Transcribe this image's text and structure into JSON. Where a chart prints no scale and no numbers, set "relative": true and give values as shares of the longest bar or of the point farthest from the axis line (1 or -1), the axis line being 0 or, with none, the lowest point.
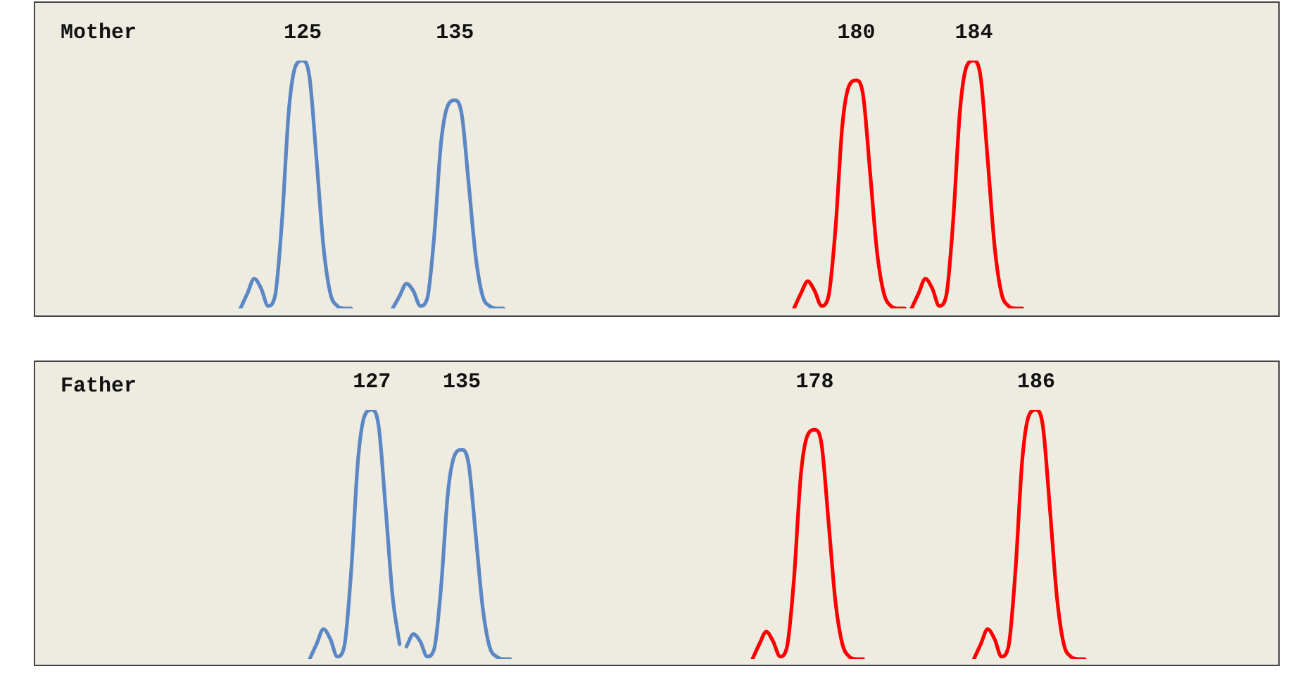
{
  "chart_data": [
    {
      "type": "line",
      "title": "Mother",
      "relative": true,
      "tick_labels": false,
      "legend": false,
      "grid": false,
      "marker": "none",
      "line_style": "solid",
      "categories": [
        null,
        null,
        null,
        null,
        null,
        null,
        null,
        null,
        null,
        null,
        null,
        null,
        null,
        null,
        null,
        null,
        null,
        null,
        null,
        null,
        null,
        null,
        null,
        null,
        null,
        null,
        null,
        null,
        null,
        null,
        null,
        null,
        null,
        null,
        null,
        null,
        null,
        null,
        null,
        null,
        null,
        null,
        null,
        null,
        null,
        null,
        null,
        null,
        null,
        null,
        null,
        null,
        null,
        null,
        null,
        null,
        null,
        null,
        null,
        null,
        null,
        null,
        null,
        null,
        null,
        null,
        null,
        null,
        null,
        null,
        null,
        null,
        null,
        null,
        null,
        null,
        null,
        null,
        null,
        null,
        null,
        null,
        null,
        null,
        null,
        null,
        null,
        null,
        null,
        null,
        null,
        null,
        null,
        null,
        null,
        null,
        null,
        null,
        null,
        null,
        null,
        null,
        null,
        null,
        null,
        null,
        null,
        null,
        null,
        null,
        null,
        null,
        null,
        null,
        null,
        null,
        null,
        null,
        null,
        null,
        null,
        null,
        null,
        null,
        null,
        null,
        null,
        null,
        null,
        null,
        null,
        null,
        null,
        null,
        null,
        null,
        null,
        null,
        null,
        null,
        null,
        null,
        null,
        null,
        null,
        null,
        null,
        null,
        null,
        null,
        null,
        null,
        null,
        null,
        null,
        null,
        null,
        null,
        null,
        null,
        null,
        null,
        null,
        null,
        null,
        null,
        null,
        null,
        null,
        null,
        null,
        null,
        null,
        null,
        null,
        null,
        null
      ],
      "series": [
        {
          "name": "125",
          "color": "#5b87c5",
          "values": [
            null,
            null,
            null,
            null,
            null,
            null,
            null,
            null,
            null,
            null,
            null,
            null,
            null,
            null,
            null,
            null,
            null,
            null,
            null,
            null,
            null,
            null,
            null,
            null,
            null,
            null,
            0,
            0.06,
            0.12,
            0.08,
            0.01,
            0.05,
            0.35,
            0.8,
            0.98,
            1,
            0.93,
            0.6,
            0.25,
            0.06,
            0.01,
            0,
            0,
            null,
            null,
            null,
            null,
            null,
            null,
            null,
            null,
            null,
            null,
            null,
            null,
            null,
            null,
            null,
            null,
            null,
            null,
            null,
            null,
            null,
            null,
            null,
            null,
            null,
            null,
            null,
            null,
            null,
            null,
            null,
            null,
            null,
            null,
            null,
            null,
            null,
            null,
            null,
            null,
            null,
            null,
            null,
            null,
            null,
            null,
            null,
            null,
            null,
            null,
            null,
            null,
            null,
            null,
            null,
            null,
            null,
            null,
            null,
            null,
            null,
            null,
            null,
            null,
            null,
            null,
            null,
            null,
            null,
            null,
            null,
            null,
            null,
            null,
            null,
            null,
            null,
            null,
            null,
            null,
            null,
            null,
            null,
            null,
            null,
            null,
            null,
            null,
            null,
            null,
            null,
            null,
            null,
            null,
            null,
            null,
            null,
            null,
            null,
            null,
            null,
            null,
            null,
            null,
            null,
            null,
            null,
            null,
            null,
            null,
            null,
            null,
            null,
            null,
            null,
            null,
            null,
            null,
            null,
            null,
            null,
            null,
            null,
            null,
            null,
            null,
            null,
            null,
            null,
            null,
            null,
            null,
            null,
            null
          ]
        },
        {
          "name": "135",
          "color": "#5b87c5",
          "values": [
            null,
            null,
            null,
            null,
            null,
            null,
            null,
            null,
            null,
            null,
            null,
            null,
            null,
            null,
            null,
            null,
            null,
            null,
            null,
            null,
            null,
            null,
            null,
            null,
            null,
            null,
            null,
            null,
            null,
            null,
            null,
            null,
            null,
            null,
            null,
            null,
            null,
            null,
            null,
            null,
            null,
            null,
            null,
            null,
            null,
            null,
            null,
            null,
            0,
            0.05,
            0.1,
            0.07,
            0.01,
            0.04,
            0.29,
            0.67,
            0.82,
            0.84,
            0.78,
            0.5,
            0.21,
            0.05,
            0.01,
            0,
            0,
            null,
            null,
            null,
            null,
            null,
            null,
            null,
            null,
            null,
            null,
            null,
            null,
            null,
            null,
            null,
            null,
            null,
            null,
            null,
            null,
            null,
            null,
            null,
            null,
            null,
            null,
            null,
            null,
            null,
            null,
            null,
            null,
            null,
            null,
            null,
            null,
            null,
            null,
            null,
            null,
            null,
            null,
            null,
            null,
            null,
            null,
            null,
            null,
            null,
            null,
            null,
            null,
            null,
            null,
            null,
            null,
            null,
            null,
            null,
            null,
            null,
            null,
            null,
            null,
            null,
            null,
            null,
            null,
            null,
            null,
            null,
            null,
            null,
            null,
            null,
            null,
            null,
            null,
            null,
            null,
            null,
            null,
            null,
            null,
            null,
            null,
            null,
            null,
            null,
            null,
            null,
            null,
            null,
            null,
            null,
            null,
            null,
            null,
            null,
            null,
            null,
            null,
            null,
            null,
            null,
            null,
            null,
            null,
            null,
            null,
            null,
            null
          ]
        },
        {
          "name": "180",
          "color": "#ff0000",
          "values": [
            null,
            null,
            null,
            null,
            null,
            null,
            null,
            null,
            null,
            null,
            null,
            null,
            null,
            null,
            null,
            null,
            null,
            null,
            null,
            null,
            null,
            null,
            null,
            null,
            null,
            null,
            null,
            null,
            null,
            null,
            null,
            null,
            null,
            null,
            null,
            null,
            null,
            null,
            null,
            null,
            null,
            null,
            null,
            null,
            null,
            null,
            null,
            null,
            null,
            null,
            null,
            null,
            null,
            null,
            null,
            null,
            null,
            null,
            null,
            null,
            null,
            null,
            null,
            null,
            null,
            null,
            null,
            null,
            null,
            null,
            null,
            null,
            null,
            null,
            null,
            null,
            null,
            null,
            null,
            null,
            null,
            null,
            null,
            null,
            null,
            null,
            null,
            null,
            null,
            null,
            null,
            null,
            null,
            null,
            null,
            null,
            null,
            null,
            null,
            null,
            null,
            null,
            null,
            null,
            null,
            null,
            0,
            0.06,
            0.11,
            0.07,
            0.01,
            0.05,
            0.32,
            0.74,
            0.9,
            0.92,
            0.86,
            0.55,
            0.23,
            0.06,
            0.01,
            0,
            0,
            null,
            null,
            null,
            null,
            null,
            null,
            null,
            null,
            null,
            null,
            null,
            null,
            null,
            null,
            null,
            null,
            null,
            null,
            null,
            null,
            null,
            null,
            null,
            null,
            null,
            null,
            null,
            null,
            null,
            null,
            null,
            null,
            null,
            null,
            null,
            null,
            null,
            null,
            null,
            null,
            null,
            null,
            null,
            null,
            null,
            null,
            null,
            null,
            null,
            null,
            null,
            null,
            null,
            null
          ]
        },
        {
          "name": "184",
          "color": "#ff0000",
          "values": [
            null,
            null,
            null,
            null,
            null,
            null,
            null,
            null,
            null,
            null,
            null,
            null,
            null,
            null,
            null,
            null,
            null,
            null,
            null,
            null,
            null,
            null,
            null,
            null,
            null,
            null,
            null,
            null,
            null,
            null,
            null,
            null,
            null,
            null,
            null,
            null,
            null,
            null,
            null,
            null,
            null,
            null,
            null,
            null,
            null,
            null,
            null,
            null,
            null,
            null,
            null,
            null,
            null,
            null,
            null,
            null,
            null,
            null,
            null,
            null,
            null,
            null,
            null,
            null,
            null,
            null,
            null,
            null,
            null,
            null,
            null,
            null,
            null,
            null,
            null,
            null,
            null,
            null,
            null,
            null,
            null,
            null,
            null,
            null,
            null,
            null,
            null,
            null,
            null,
            null,
            null,
            null,
            null,
            null,
            null,
            null,
            null,
            null,
            null,
            null,
            null,
            null,
            null,
            null,
            null,
            null,
            null,
            null,
            null,
            null,
            null,
            null,
            null,
            null,
            null,
            null,
            null,
            null,
            null,
            null,
            null,
            null,
            null,
            0,
            0.06,
            0.12,
            0.08,
            0.01,
            0.05,
            0.35,
            0.8,
            0.98,
            1,
            0.93,
            0.6,
            0.25,
            0.06,
            0.01,
            0,
            0,
            null,
            null,
            null,
            null,
            null,
            null,
            null,
            null,
            null,
            null,
            null,
            null,
            null,
            null,
            null,
            null,
            null,
            null,
            null,
            null,
            null,
            null,
            null,
            null,
            null,
            null,
            null,
            null,
            null,
            null,
            null,
            null,
            null,
            null,
            null,
            null,
            null
          ]
        }
      ]
    },
    {
      "type": "line",
      "title": "Father",
      "relative": true,
      "tick_labels": false,
      "legend": false,
      "grid": false,
      "marker": "none",
      "line_style": "solid",
      "categories": [
        null,
        null,
        null,
        null,
        null,
        null,
        null,
        null,
        null,
        null,
        null,
        null,
        null,
        null,
        null,
        null,
        null,
        null,
        null,
        null,
        null,
        null,
        null,
        null,
        null,
        null,
        null,
        null,
        null,
        null,
        null,
        null,
        null,
        null,
        null,
        null,
        null,
        null,
        null,
        null,
        null,
        null,
        null,
        null,
        null,
        null,
        null,
        null,
        null,
        null,
        null,
        null,
        null,
        null,
        null,
        null,
        null,
        null,
        null,
        null,
        null,
        null,
        null,
        null,
        null,
        null,
        null,
        null,
        null,
        null,
        null,
        null,
        null,
        null,
        null,
        null,
        null,
        null,
        null,
        null,
        null,
        null,
        null,
        null,
        null,
        null,
        null,
        null,
        null,
        null,
        null,
        null,
        null,
        null,
        null,
        null,
        null,
        null,
        null,
        null,
        null,
        null,
        null,
        null,
        null,
        null,
        null,
        null,
        null,
        null,
        null,
        null,
        null,
        null,
        null,
        null,
        null,
        null,
        null,
        null,
        null,
        null,
        null,
        null,
        null,
        null,
        null,
        null,
        null,
        null,
        null,
        null,
        null,
        null,
        null,
        null,
        null,
        null,
        null,
        null,
        null,
        null,
        null,
        null,
        null,
        null,
        null,
        null,
        null,
        null,
        null,
        null,
        null,
        null,
        null,
        null,
        null,
        null,
        null,
        null,
        null,
        null,
        null,
        null,
        null,
        null,
        null,
        null,
        null,
        null,
        null,
        null,
        null,
        null,
        null,
        null,
        null
      ],
      "series": [
        {
          "name": "127",
          "color": "#5b87c5",
          "values": [
            null,
            null,
            null,
            null,
            null,
            null,
            null,
            null,
            null,
            null,
            null,
            null,
            null,
            null,
            null,
            null,
            null,
            null,
            null,
            null,
            null,
            null,
            null,
            null,
            null,
            null,
            null,
            null,
            null,
            null,
            null,
            null,
            null,
            null,
            null,
            null,
            0,
            0.06,
            0.12,
            0.08,
            0.01,
            0.05,
            0.35,
            0.8,
            0.98,
            1,
            0.93,
            0.6,
            0.25,
            0.06,
            null,
            null,
            null,
            null,
            null,
            null,
            null,
            null,
            null,
            null,
            null,
            null,
            null,
            null,
            null,
            null,
            null,
            null,
            null,
            null,
            null,
            null,
            null,
            null,
            null,
            null,
            null,
            null,
            null,
            null,
            null,
            null,
            null,
            null,
            null,
            null,
            null,
            null,
            null,
            null,
            null,
            null,
            null,
            null,
            null,
            null,
            null,
            null,
            null,
            null,
            null,
            null,
            null,
            null,
            null,
            null,
            null,
            null,
            null,
            null,
            null,
            null,
            null,
            null,
            null,
            null,
            null,
            null,
            null,
            null,
            null,
            null,
            null,
            null,
            null,
            null,
            null,
            null,
            null,
            null,
            null,
            null,
            null,
            null,
            null,
            null,
            null,
            null,
            null,
            null,
            null,
            null,
            null,
            null,
            null,
            null,
            null,
            null,
            null,
            null,
            null,
            null,
            null,
            null,
            null,
            null,
            null,
            null,
            null,
            null,
            null,
            null,
            null,
            null,
            null,
            null,
            null,
            null,
            null,
            null,
            null,
            null,
            null,
            null,
            null,
            null,
            null
          ]
        },
        {
          "name": "135",
          "color": "#5b87c5",
          "values": [
            null,
            null,
            null,
            null,
            null,
            null,
            null,
            null,
            null,
            null,
            null,
            null,
            null,
            null,
            null,
            null,
            null,
            null,
            null,
            null,
            null,
            null,
            null,
            null,
            null,
            null,
            null,
            null,
            null,
            null,
            null,
            null,
            null,
            null,
            null,
            null,
            null,
            null,
            null,
            null,
            null,
            null,
            null,
            null,
            null,
            null,
            null,
            null,
            null,
            null,
            0.05,
            0.1,
            0.07,
            0.01,
            0.04,
            0.29,
            0.67,
            0.82,
            0.84,
            0.78,
            0.5,
            0.21,
            0.05,
            0.01,
            0,
            0,
            null,
            null,
            null,
            null,
            null,
            null,
            null,
            null,
            null,
            null,
            null,
            null,
            null,
            null,
            null,
            null,
            null,
            null,
            null,
            null,
            null,
            null,
            null,
            null,
            null,
            null,
            null,
            null,
            null,
            null,
            null,
            null,
            null,
            null,
            null,
            null,
            null,
            null,
            null,
            null,
            null,
            null,
            null,
            null,
            null,
            null,
            null,
            null,
            null,
            null,
            null,
            null,
            null,
            null,
            null,
            null,
            null,
            null,
            null,
            null,
            null,
            null,
            null,
            null,
            null,
            null,
            null,
            null,
            null,
            null,
            null,
            null,
            null,
            null,
            null,
            null,
            null,
            null,
            null,
            null,
            null,
            null,
            null,
            null,
            null,
            null,
            null,
            null,
            null,
            null,
            null,
            null,
            null,
            null,
            null,
            null,
            null,
            null,
            null,
            null,
            null,
            null,
            null,
            null,
            null,
            null,
            null,
            null,
            null,
            null,
            null
          ]
        },
        {
          "name": "178",
          "color": "#ff0000",
          "values": [
            null,
            null,
            null,
            null,
            null,
            null,
            null,
            null,
            null,
            null,
            null,
            null,
            null,
            null,
            null,
            null,
            null,
            null,
            null,
            null,
            null,
            null,
            null,
            null,
            null,
            null,
            null,
            null,
            null,
            null,
            null,
            null,
            null,
            null,
            null,
            null,
            null,
            null,
            null,
            null,
            null,
            null,
            null,
            null,
            null,
            null,
            null,
            null,
            null,
            null,
            null,
            null,
            null,
            null,
            null,
            null,
            null,
            null,
            null,
            null,
            null,
            null,
            null,
            null,
            null,
            null,
            null,
            null,
            null,
            null,
            null,
            null,
            null,
            null,
            null,
            null,
            null,
            null,
            null,
            null,
            null,
            null,
            null,
            null,
            null,
            null,
            null,
            null,
            null,
            null,
            null,
            null,
            null,
            null,
            null,
            null,
            null,
            null,
            null,
            null,
            0,
            0.06,
            0.11,
            0.07,
            0.01,
            0.05,
            0.32,
            0.74,
            0.9,
            0.92,
            0.86,
            0.55,
            0.23,
            0.06,
            0.01,
            0,
            0,
            null,
            null,
            null,
            null,
            null,
            null,
            null,
            null,
            null,
            null,
            null,
            null,
            null,
            null,
            null,
            null,
            null,
            null,
            null,
            null,
            null,
            null,
            null,
            null,
            null,
            null,
            null,
            null,
            null,
            null,
            null,
            null,
            null,
            null,
            null,
            null,
            null,
            null,
            null,
            null,
            null,
            null,
            null,
            null,
            null,
            null,
            null,
            null,
            null,
            null,
            null,
            null,
            null,
            null,
            null,
            null,
            null,
            null,
            null,
            null
          ]
        },
        {
          "name": "186",
          "color": "#ff0000",
          "values": [
            null,
            null,
            null,
            null,
            null,
            null,
            null,
            null,
            null,
            null,
            null,
            null,
            null,
            null,
            null,
            null,
            null,
            null,
            null,
            null,
            null,
            null,
            null,
            null,
            null,
            null,
            null,
            null,
            null,
            null,
            null,
            null,
            null,
            null,
            null,
            null,
            null,
            null,
            null,
            null,
            null,
            null,
            null,
            null,
            null,
            null,
            null,
            null,
            null,
            null,
            null,
            null,
            null,
            null,
            null,
            null,
            null,
            null,
            null,
            null,
            null,
            null,
            null,
            null,
            null,
            null,
            null,
            null,
            null,
            null,
            null,
            null,
            null,
            null,
            null,
            null,
            null,
            null,
            null,
            null,
            null,
            null,
            null,
            null,
            null,
            null,
            null,
            null,
            null,
            null,
            null,
            null,
            null,
            null,
            null,
            null,
            null,
            null,
            null,
            null,
            null,
            null,
            null,
            null,
            null,
            null,
            null,
            null,
            null,
            null,
            null,
            null,
            null,
            null,
            null,
            null,
            null,
            null,
            null,
            null,
            null,
            null,
            null,
            null,
            null,
            null,
            null,
            null,
            null,
            null,
            null,
            null,
            0,
            0.06,
            0.12,
            0.08,
            0.01,
            0.05,
            0.35,
            0.8,
            0.98,
            1,
            0.93,
            0.6,
            0.25,
            0.06,
            0.01,
            0,
            0,
            null,
            null,
            null,
            null,
            null,
            null,
            null,
            null,
            null,
            null,
            null,
            null,
            null,
            null,
            null,
            null,
            null,
            null,
            null,
            null,
            null,
            null,
            null,
            null,
            null,
            null,
            null,
            null
          ]
        }
      ]
    }
  ]
}
